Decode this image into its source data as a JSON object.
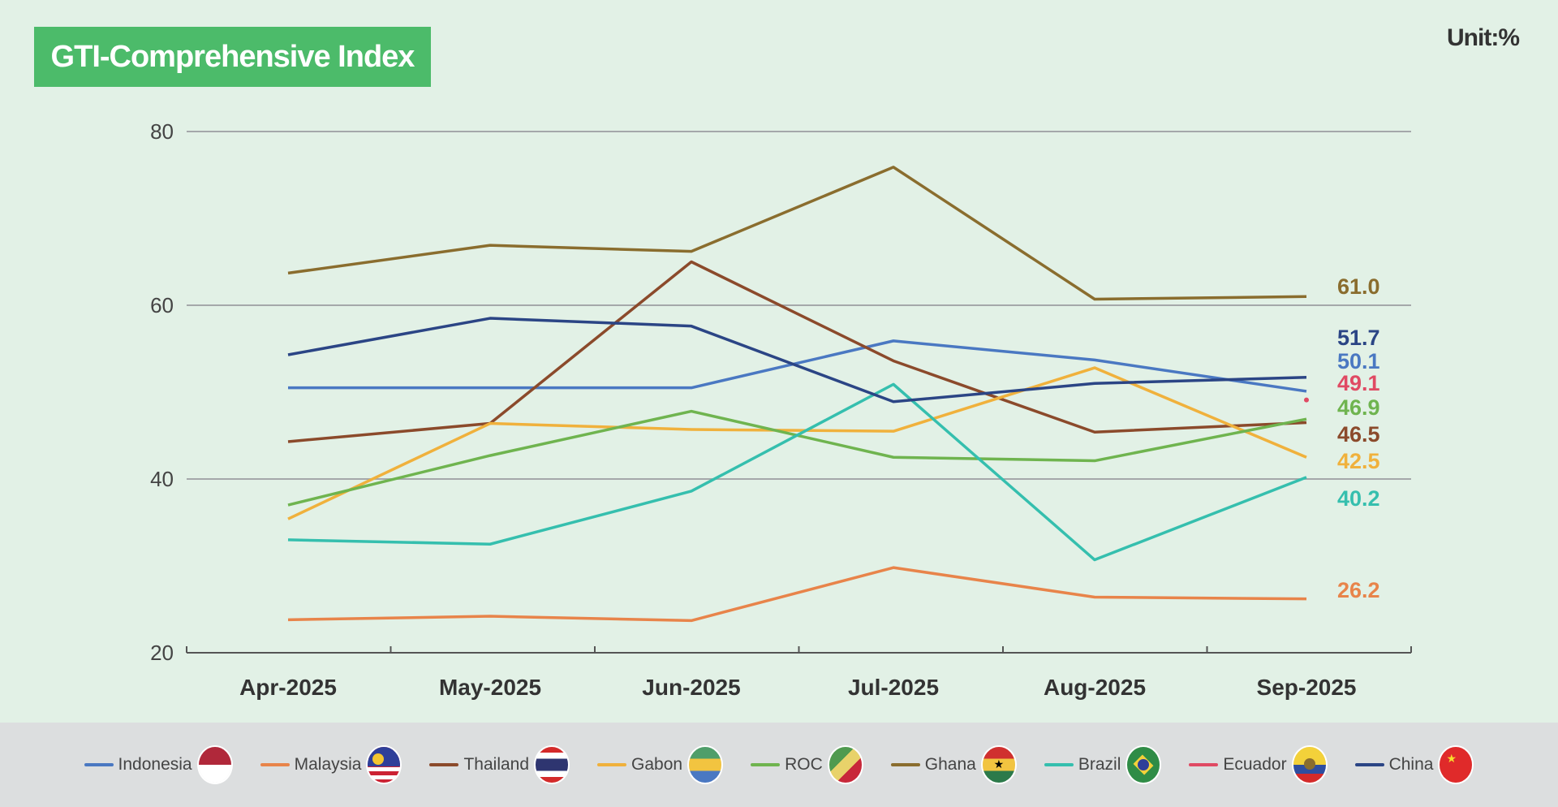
{
  "header": {
    "title": "GTI-Comprehensive Index",
    "unit": "Unit:%"
  },
  "chart_data": {
    "type": "line",
    "title": "GTI-Comprehensive Index",
    "unit": "Unit:%",
    "categories": [
      "Apr-2025",
      "May-2025",
      "Jun-2025",
      "Jul-2025",
      "Aug-2025",
      "Sep-2025"
    ],
    "ylim": [
      20,
      80
    ],
    "yticks": [
      20,
      40,
      60,
      80
    ],
    "grid": true,
    "legend_position": "bottom",
    "series": [
      {
        "name": "Indonesia",
        "color": "#4a78c2",
        "flag": "indonesia-flag",
        "values": [
          50.5,
          50.5,
          50.5,
          55.9,
          53.7,
          50.1
        ],
        "end_label": "50.1"
      },
      {
        "name": "Malaysia",
        "color": "#e8844a",
        "flag": "malaysia-flag",
        "values": [
          23.8,
          24.2,
          23.7,
          29.8,
          26.4,
          26.2
        ],
        "end_label": "26.2"
      },
      {
        "name": "Thailand",
        "color": "#8b4a2b",
        "flag": "thailand-flag",
        "values": [
          44.3,
          46.4,
          65.0,
          53.6,
          45.4,
          46.5
        ],
        "end_label": "46.5"
      },
      {
        "name": "Gabon",
        "color": "#f0b13c",
        "flag": "gabon-flag",
        "values": [
          35.4,
          46.4,
          45.7,
          45.5,
          52.8,
          42.5
        ],
        "end_label": "42.5"
      },
      {
        "name": "ROC",
        "color": "#6fb44f",
        "flag": "roc-flag",
        "values": [
          37.0,
          42.7,
          47.8,
          42.5,
          42.1,
          46.9
        ],
        "end_label": "46.9"
      },
      {
        "name": "Ghana",
        "color": "#8a6d2e",
        "flag": "ghana-flag",
        "values": [
          63.7,
          66.9,
          66.2,
          75.9,
          60.7,
          61.0
        ],
        "end_label": "61.0"
      },
      {
        "name": "Brazil",
        "color": "#35bfae",
        "flag": "brazil-flag",
        "values": [
          33.0,
          32.5,
          38.6,
          50.9,
          30.7,
          40.2
        ],
        "end_label": "40.2"
      },
      {
        "name": "Ecuador",
        "color": "#e04a63",
        "flag": "ecuador-flag",
        "values": [
          null,
          null,
          null,
          null,
          null,
          49.1
        ],
        "end_label": "49.1"
      },
      {
        "name": "China",
        "color": "#2b4585",
        "flag": "china-flag",
        "values": [
          54.3,
          58.5,
          57.6,
          48.9,
          51.0,
          51.7
        ],
        "end_label": "51.7"
      }
    ]
  }
}
